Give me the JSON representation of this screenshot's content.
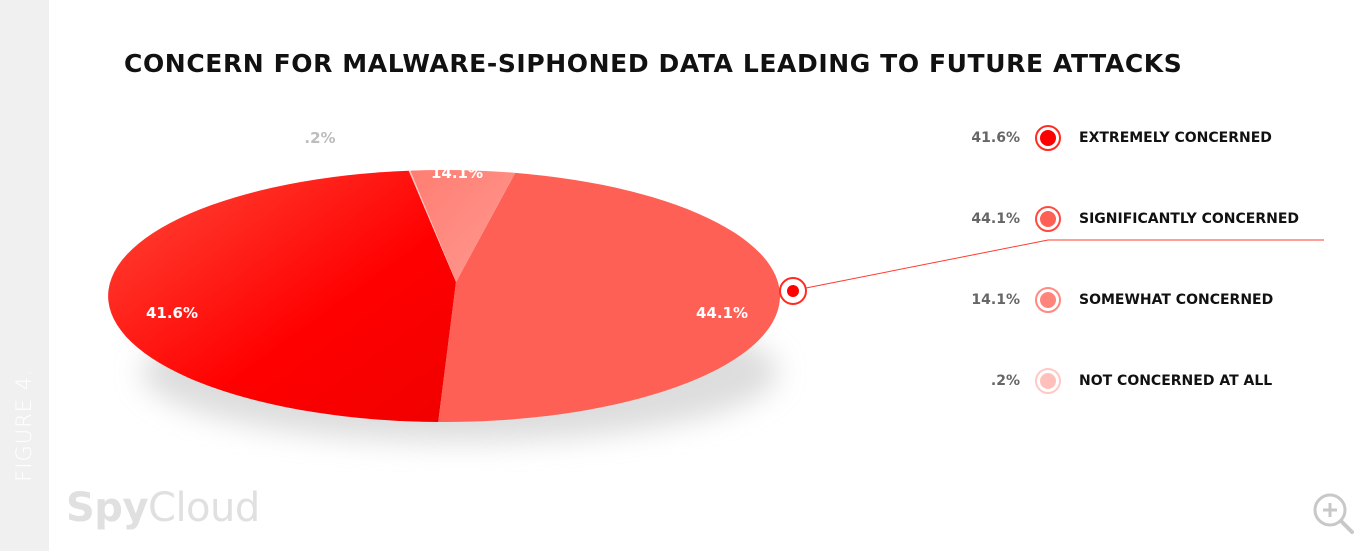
{
  "figure_label": "FIGURE 4.",
  "brand": {
    "part1": "Spy",
    "part2": "Cloud"
  },
  "zoom_icon": "zoom-in-icon",
  "chart_data": {
    "type": "pie",
    "title": "CONCERN FOR MALWARE-SIPHONED DATA LEADING TO FUTURE ATTACKS",
    "slices": [
      {
        "label": "EXTREMELY CONCERNED",
        "value": 41.6,
        "display": "41.6%",
        "color": "#ff0000"
      },
      {
        "label": "SIGNIFICANTLY CONCERNED",
        "value": 44.1,
        "display": "44.1%",
        "color": "#ff6055"
      },
      {
        "label": "SOMEWHAT CONCERNED",
        "value": 14.1,
        "display": "14.1%",
        "color": "#ff857c"
      },
      {
        "label": "NOT CONCERNED AT ALL",
        "value": 0.2,
        "display": ".2%",
        "color": "#ffc0bc"
      }
    ],
    "legend_position": "right",
    "highlighted_slice": "SIGNIFICANTLY CONCERNED"
  }
}
